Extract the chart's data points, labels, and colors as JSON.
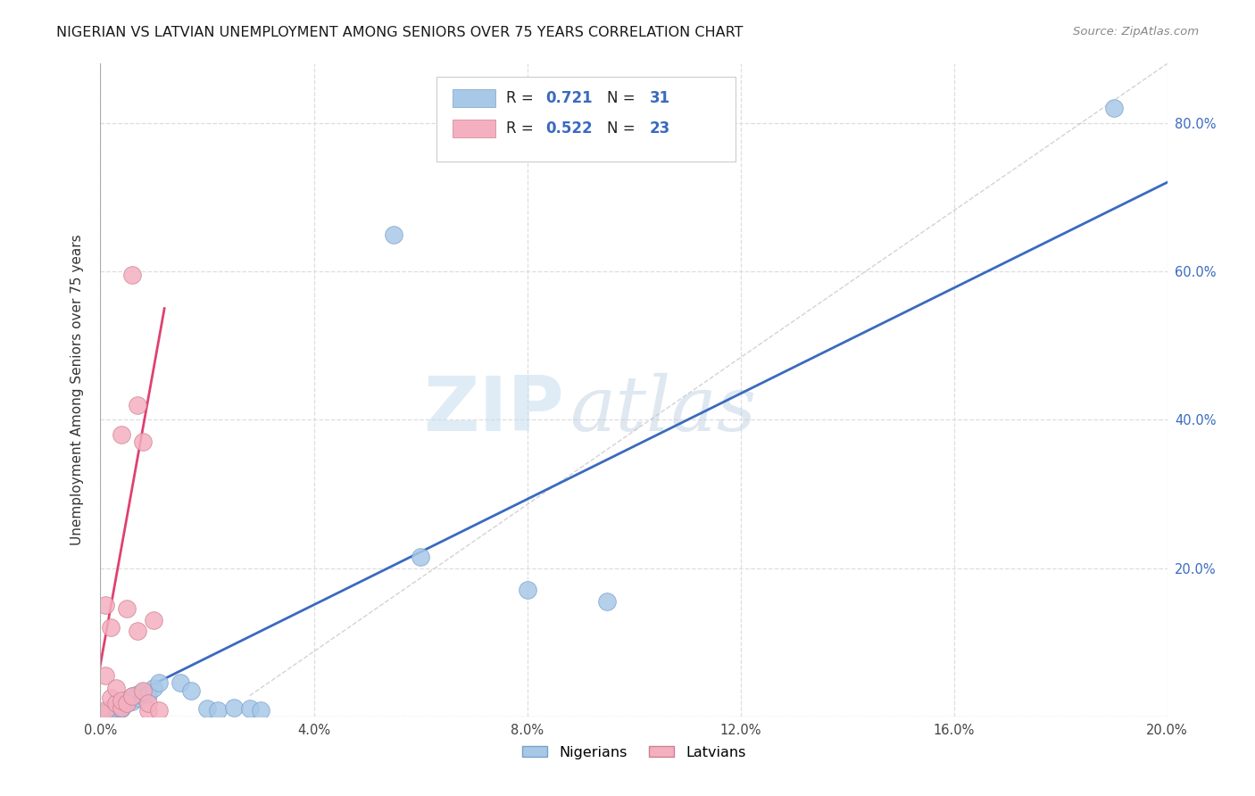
{
  "title": "NIGERIAN VS LATVIAN UNEMPLOYMENT AMONG SENIORS OVER 75 YEARS CORRELATION CHART",
  "source": "Source: ZipAtlas.com",
  "ylabel": "Unemployment Among Seniors over 75 years",
  "xlim": [
    0.0,
    0.2
  ],
  "ylim": [
    0.0,
    0.88
  ],
  "xticks": [
    0.0,
    0.04,
    0.08,
    0.12,
    0.16,
    0.2
  ],
  "yticks": [
    0.0,
    0.2,
    0.4,
    0.6,
    0.8
  ],
  "xtick_labels": [
    "0.0%",
    "4.0%",
    "8.0%",
    "12.0%",
    "16.0%",
    "20.0%"
  ],
  "ytick_labels": [
    "",
    "20.0%",
    "40.0%",
    "60.0%",
    "80.0%"
  ],
  "blue_R": "0.721",
  "blue_N": "31",
  "pink_R": "0.522",
  "pink_N": "23",
  "blue_dots": [
    [
      0.001,
      0.003
    ],
    [
      0.001,
      0.006
    ],
    [
      0.002,
      0.005
    ],
    [
      0.002,
      0.01
    ],
    [
      0.003,
      0.008
    ],
    [
      0.003,
      0.012
    ],
    [
      0.004,
      0.01
    ],
    [
      0.004,
      0.015
    ],
    [
      0.005,
      0.018
    ],
    [
      0.005,
      0.022
    ],
    [
      0.006,
      0.02
    ],
    [
      0.006,
      0.028
    ],
    [
      0.007,
      0.025
    ],
    [
      0.007,
      0.03
    ],
    [
      0.008,
      0.028
    ],
    [
      0.008,
      0.034
    ],
    [
      0.009,
      0.03
    ],
    [
      0.01,
      0.038
    ],
    [
      0.011,
      0.045
    ],
    [
      0.015,
      0.045
    ],
    [
      0.017,
      0.035
    ],
    [
      0.02,
      0.01
    ],
    [
      0.022,
      0.008
    ],
    [
      0.025,
      0.012
    ],
    [
      0.028,
      0.01
    ],
    [
      0.03,
      0.008
    ],
    [
      0.055,
      0.65
    ],
    [
      0.06,
      0.215
    ],
    [
      0.08,
      0.17
    ],
    [
      0.095,
      0.155
    ],
    [
      0.19,
      0.82
    ]
  ],
  "pink_dots": [
    [
      0.0,
      0.005
    ],
    [
      0.001,
      0.008
    ],
    [
      0.001,
      0.055
    ],
    [
      0.001,
      0.15
    ],
    [
      0.002,
      0.025
    ],
    [
      0.002,
      0.12
    ],
    [
      0.003,
      0.018
    ],
    [
      0.003,
      0.038
    ],
    [
      0.004,
      0.38
    ],
    [
      0.004,
      0.012
    ],
    [
      0.004,
      0.022
    ],
    [
      0.005,
      0.145
    ],
    [
      0.005,
      0.018
    ],
    [
      0.006,
      0.028
    ],
    [
      0.006,
      0.595
    ],
    [
      0.007,
      0.42
    ],
    [
      0.007,
      0.115
    ],
    [
      0.008,
      0.37
    ],
    [
      0.008,
      0.035
    ],
    [
      0.009,
      0.008
    ],
    [
      0.009,
      0.018
    ],
    [
      0.01,
      0.13
    ],
    [
      0.011,
      0.008
    ]
  ],
  "blue_line_x": [
    0.0,
    0.2
  ],
  "blue_line_y": [
    0.008,
    0.72
  ],
  "pink_line_x": [
    -0.001,
    0.012
  ],
  "pink_line_y": [
    0.03,
    0.55
  ],
  "diag_line_x": [
    0.028,
    0.2
  ],
  "diag_line_y": [
    0.028,
    0.88
  ],
  "watermark_zip": "ZIP",
  "watermark_atlas": "atlas",
  "bg_color": "#ffffff",
  "grid_color": "#dedede",
  "blue_dot_color": "#a8c8e8",
  "pink_dot_color": "#f4b0c0",
  "blue_line_color": "#3a6abf",
  "pink_line_color": "#e04070",
  "diag_color": "#c8c8c8"
}
